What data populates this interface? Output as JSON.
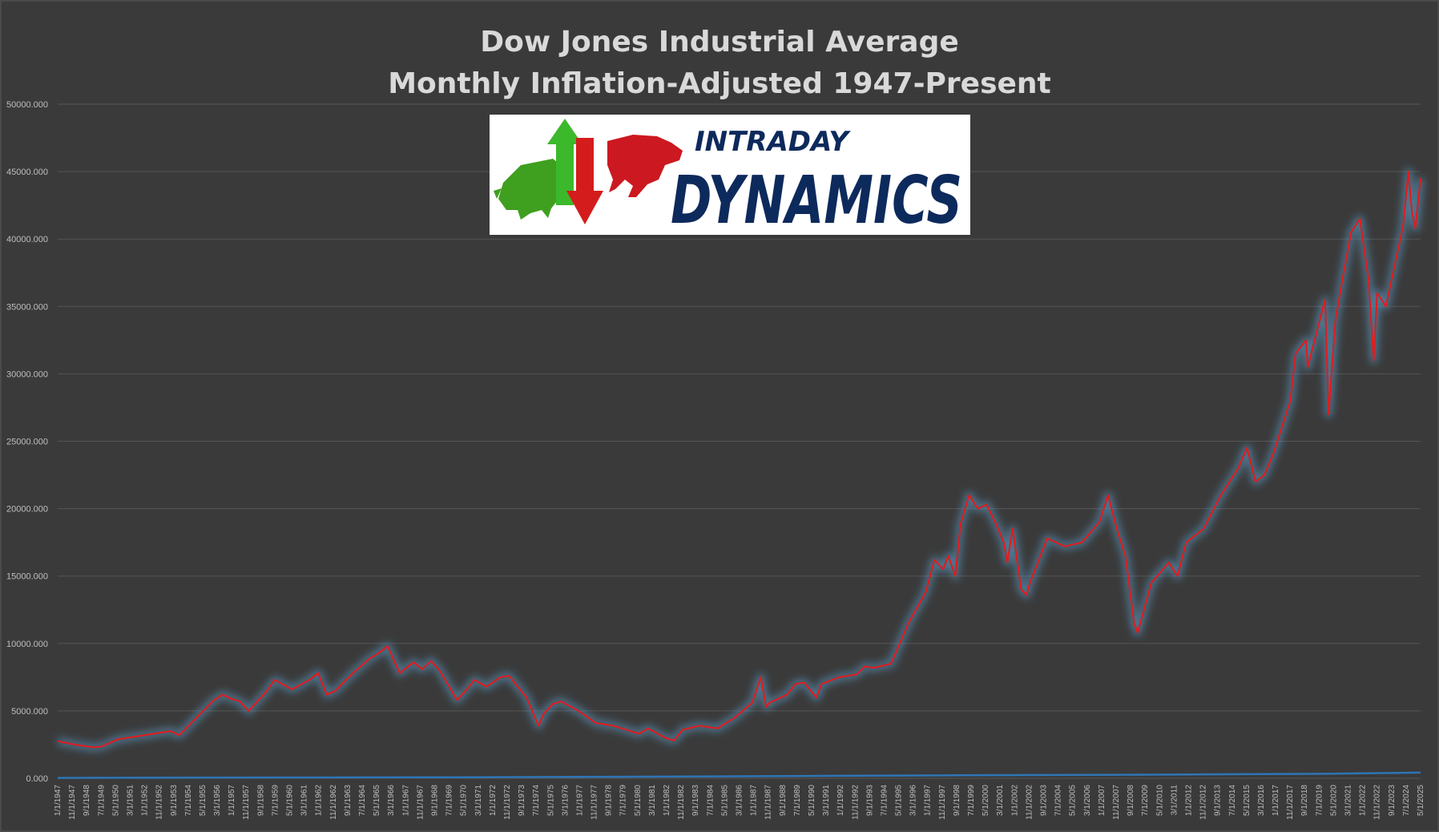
{
  "chart_data": {
    "type": "line",
    "title": "Dow Jones Industrial Average",
    "subtitle": "Monthly Inflation-Adjusted 1947-Present",
    "xlabel": "",
    "ylabel": "",
    "ylim": [
      0,
      50000
    ],
    "yticks": [
      "0.000",
      "5000.000",
      "10000.000",
      "15000.000",
      "20000.000",
      "25000.000",
      "30000.000",
      "35000.000",
      "40000.000",
      "45000.000",
      "50000.000"
    ],
    "xticks": [
      "1/1/1947",
      "11/1/1947",
      "9/1/1948",
      "7/1/1949",
      "5/1/1950",
      "3/1/1951",
      "1/1/1952",
      "11/1/1952",
      "9/1/1953",
      "7/1/1954",
      "5/1/1955",
      "3/1/1956",
      "1/1/1957",
      "11/1/1957",
      "9/1/1958",
      "7/1/1959",
      "5/1/1960",
      "3/1/1961",
      "1/1/1962",
      "11/1/1962",
      "9/1/1963",
      "7/1/1964",
      "5/1/1965",
      "3/1/1966",
      "1/1/1967",
      "11/1/1967",
      "9/1/1968",
      "7/1/1969",
      "5/1/1970",
      "3/1/1971",
      "1/1/1972",
      "11/1/1972",
      "9/1/1973",
      "7/1/1974",
      "5/1/1975",
      "3/1/1976",
      "1/1/1977",
      "11/1/1977",
      "9/1/1978",
      "7/1/1979",
      "5/1/1980",
      "3/1/1981",
      "1/1/1982",
      "11/1/1982",
      "9/1/1983",
      "7/1/1984",
      "5/1/1985",
      "3/1/1986",
      "1/1/1987",
      "11/1/1987",
      "9/1/1988",
      "7/1/1989",
      "5/1/1990",
      "3/1/1991",
      "1/1/1992",
      "11/1/1992",
      "9/1/1993",
      "7/1/1994",
      "5/1/1995",
      "3/1/1996",
      "1/1/1997",
      "11/1/1997",
      "9/1/1998",
      "7/1/1999",
      "5/1/2000",
      "3/1/2001",
      "1/1/2002",
      "11/1/2002",
      "9/1/2003",
      "7/1/2004",
      "5/1/2005",
      "3/1/2006",
      "1/1/2007",
      "11/1/2007",
      "9/1/2008",
      "7/1/2009",
      "5/1/2010",
      "3/1/2011",
      "1/1/2012",
      "11/1/2012",
      "9/1/2013",
      "7/1/2014",
      "5/1/2015",
      "3/1/2016",
      "1/1/2017",
      "11/1/2017",
      "9/1/2018",
      "7/1/2019",
      "5/1/2020",
      "3/1/2021",
      "1/1/2022",
      "11/1/2022",
      "9/1/2023",
      "7/1/2024",
      "5/1/2025"
    ],
    "x_range": [
      1947.0,
      2025.5
    ],
    "grid": true,
    "series": [
      {
        "color": "#e31a1c",
        "x": [
          1947.0,
          1948.0,
          1949.0,
          1949.5,
          1950.5,
          1951.5,
          1952.5,
          1953.5,
          1954.0,
          1955.0,
          1956.0,
          1956.5,
          1957.0,
          1957.5,
          1958.0,
          1959.0,
          1959.5,
          1960.5,
          1961.5,
          1962.0,
          1962.5,
          1963.0,
          1964.0,
          1965.0,
          1965.5,
          1966.0,
          1966.7,
          1967.5,
          1968.0,
          1968.5,
          1969.0,
          1970.0,
          1970.5,
          1971.0,
          1971.7,
          1972.5,
          1973.0,
          1973.5,
          1974.0,
          1974.7,
          1975.0,
          1975.5,
          1976.0,
          1977.0,
          1978.0,
          1979.0,
          1980.0,
          1980.5,
          1981.0,
          1982.0,
          1982.5,
          1983.0,
          1984.0,
          1985.0,
          1986.0,
          1987.0,
          1987.5,
          1987.8,
          1988.0,
          1989.0,
          1989.5,
          1990.0,
          1990.7,
          1991.0,
          1992.0,
          1993.0,
          1993.5,
          1994.0,
          1995.0,
          1996.0,
          1997.0,
          1997.5,
          1998.0,
          1998.3,
          1998.7,
          1999.0,
          1999.5,
          2000.0,
          2000.5,
          2001.0,
          2001.5,
          2001.7,
          2002.0,
          2002.5,
          2002.8,
          2003.0,
          2004.0,
          2005.0,
          2006.0,
          2007.0,
          2007.5,
          2008.0,
          2008.5,
          2009.0,
          2009.2,
          2010.0,
          2011.0,
          2011.5,
          2012.0,
          2013.0,
          2014.0,
          2015.0,
          2015.5,
          2016.0,
          2016.5,
          2017.0,
          2018.0,
          2018.3,
          2018.9,
          2019.0,
          2019.5,
          2020.0,
          2020.2,
          2020.6,
          2021.0,
          2021.5,
          2022.0,
          2022.5,
          2022.8,
          2023.0,
          2023.5,
          2024.0,
          2024.5,
          2024.8,
          2025.0,
          2025.2,
          2025.5
        ],
        "values": [
          2750,
          2500,
          2300,
          2350,
          2900,
          3100,
          3300,
          3500,
          3200,
          4500,
          5800,
          6200,
          5900,
          5700,
          5000,
          6400,
          7300,
          6600,
          7300,
          7800,
          6200,
          6500,
          7800,
          8900,
          9300,
          9800,
          7800,
          8600,
          8100,
          8700,
          8000,
          5800,
          6500,
          7300,
          6800,
          7500,
          7600,
          6800,
          6000,
          3900,
          4800,
          5500,
          5700,
          5000,
          4100,
          3900,
          3500,
          3300,
          3700,
          3000,
          2800,
          3600,
          3900,
          3700,
          4500,
          5600,
          7500,
          5300,
          5600,
          6200,
          7000,
          7100,
          6000,
          7000,
          7500,
          7700,
          8300,
          8200,
          8500,
          11500,
          13800,
          16200,
          15500,
          16500,
          15000,
          18800,
          21000,
          20000,
          20300,
          19000,
          17500,
          16000,
          18500,
          14000,
          13600,
          14500,
          17800,
          17200,
          17500,
          19000,
          21000,
          18500,
          16500,
          11500,
          10800,
          14500,
          16000,
          15000,
          17500,
          18500,
          21000,
          23000,
          24500,
          22000,
          22500,
          24000,
          28000,
          31500,
          32500,
          30500,
          33000,
          35500,
          27000,
          34000,
          37000,
          40500,
          41500,
          37000,
          31000,
          36000,
          35000,
          38000,
          41000,
          45000,
          42000,
          40800,
          44500
        ]
      },
      {
        "color": "#2e75b6",
        "x": [
          1947.0,
          1960.0,
          1970.0,
          1980.0,
          1990.0,
          2000.0,
          2010.0,
          2020.0,
          2025.5
        ],
        "values": [
          30,
          60,
          80,
          120,
          170,
          230,
          270,
          330,
          420
        ]
      }
    ]
  },
  "logo": {
    "text_line1": "INTRADAY",
    "text_line2": "DYNAMICS"
  }
}
